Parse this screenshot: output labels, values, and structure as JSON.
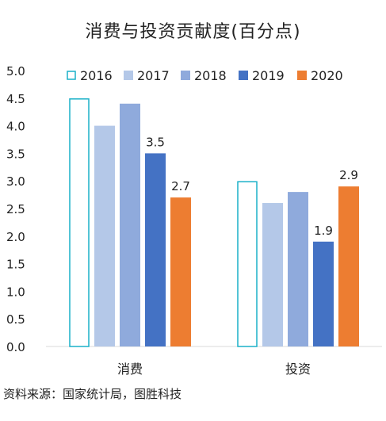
{
  "chart_data": {
    "type": "bar",
    "title": "消费与投资贡献度(百分点)",
    "categories": [
      "消费",
      "投资"
    ],
    "series": [
      {
        "name": "2016",
        "values": [
          4.5,
          3.0
        ],
        "color": "#1ab0c8",
        "style": "outline"
      },
      {
        "name": "2017",
        "values": [
          4.0,
          2.6
        ],
        "color": "#b4c8e8",
        "style": "solid"
      },
      {
        "name": "2018",
        "values": [
          4.4,
          2.8
        ],
        "color": "#8faadc",
        "style": "solid"
      },
      {
        "name": "2019",
        "values": [
          3.5,
          1.9
        ],
        "color": "#4472c4",
        "style": "solid"
      },
      {
        "name": "2020",
        "values": [
          2.7,
          2.9
        ],
        "color": "#ed7d31",
        "style": "solid"
      }
    ],
    "data_labels": {
      "2019": [
        3.5,
        1.9
      ],
      "2020": [
        2.7,
        2.9
      ]
    },
    "ylim": [
      0,
      5.0
    ],
    "yticks": [
      "0.0",
      "0.5",
      "1.0",
      "1.5",
      "2.0",
      "2.5",
      "3.0",
      "3.5",
      "4.0",
      "4.5",
      "5.0"
    ],
    "grid": false,
    "legend_position": "top"
  },
  "source": "资料来源：国家统计局，图胜科技"
}
